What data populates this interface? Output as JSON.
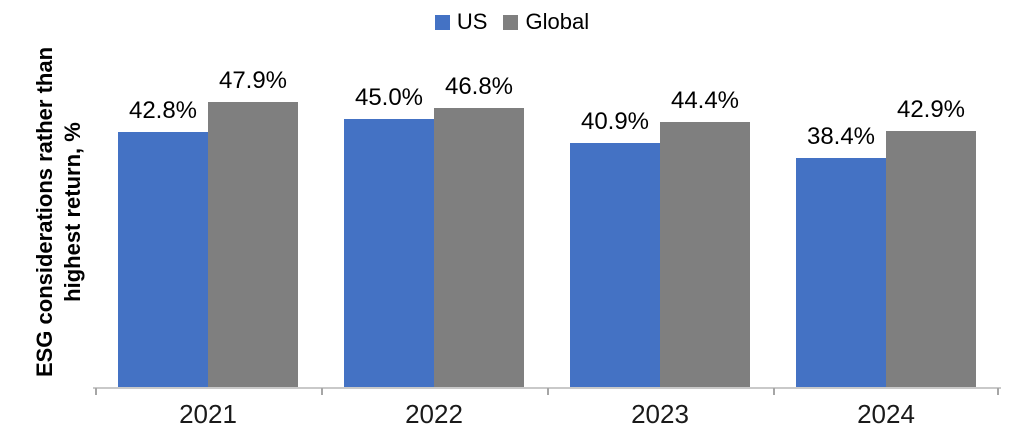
{
  "chart_data": {
    "type": "bar",
    "title": "",
    "categories": [
      "2021",
      "2022",
      "2023",
      "2024"
    ],
    "series": [
      {
        "name": "US",
        "color": "#4472C4",
        "values": [
          42.8,
          45.0,
          40.9,
          38.4
        ]
      },
      {
        "name": "Global",
        "color": "#7F7F7F",
        "values": [
          47.9,
          46.8,
          44.4,
          42.9
        ]
      }
    ],
    "data_label_suffix": "%",
    "data_labels_shown": true,
    "ylabel": "ESG considerations rather than highest return, %",
    "ylabel_lines": [
      "ESG considerations rather than",
      "highest return, %"
    ],
    "xlabel": "",
    "ylim": [
      0,
      50
    ],
    "grid": false,
    "legend_position": "top-center"
  },
  "colors": {
    "axis_line": "#c9c9c9",
    "tick": "#a6a6a6",
    "value_label_text": "#000000",
    "category_label_text": "#1a1a1a"
  }
}
